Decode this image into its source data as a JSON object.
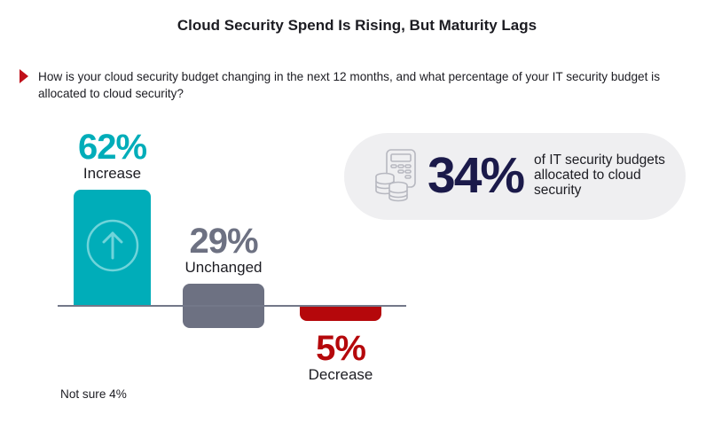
{
  "header": {
    "title": "Cloud Security Spend Is Rising, But Maturity Lags",
    "question": "How is your cloud security budget changing in the next 12 months, and what percentage of your IT security budget is allocated to cloud security?"
  },
  "colors": {
    "increase": "#00adb9",
    "unchanged": "#6d7182",
    "decrease": "#b5080b",
    "stat": "#1b1a4a",
    "pill": "#efeff1",
    "marker": "#c0101a"
  },
  "chart_data": {
    "type": "bar",
    "title": "Cloud Security Spend Is Rising, But Maturity Lags",
    "categories": [
      "Increase",
      "Unchanged",
      "Decrease"
    ],
    "values": [
      62,
      29,
      5
    ],
    "value_labels": [
      "62%",
      "29%",
      "5%"
    ],
    "direction": [
      "up",
      "center",
      "down"
    ],
    "unit": "%",
    "xlabel": "",
    "ylabel": "",
    "grid": false,
    "footnote": "Not sure 4%",
    "other": [
      {
        "label": "Not sure",
        "value": 4
      }
    ]
  },
  "callout": {
    "value": "34%",
    "description": "of IT security budgets allocated to cloud security",
    "icon": "calculator-coins-icon"
  },
  "footnote": "Not sure 4%"
}
